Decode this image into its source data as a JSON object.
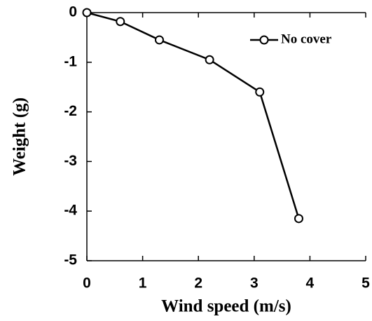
{
  "chart_data": {
    "type": "line",
    "x_label": "Wind speed (m/s)",
    "y_label": "Weight (g)",
    "x": [
      0,
      0.6,
      1.3,
      2.2,
      3.1,
      3.8
    ],
    "series": [
      {
        "name": "No cover",
        "color": "#000000",
        "values": [
          0,
          -0.18,
          -0.55,
          -0.95,
          -1.6,
          -4.15
        ]
      }
    ],
    "xlim": [
      0,
      5
    ],
    "xticks": [
      0,
      1,
      2,
      3,
      4,
      5
    ],
    "ylim": [
      -5,
      0
    ],
    "yticks": [
      -5,
      -4,
      -3,
      -2,
      -1,
      0
    ],
    "legend": "upper right",
    "grid": false
  }
}
